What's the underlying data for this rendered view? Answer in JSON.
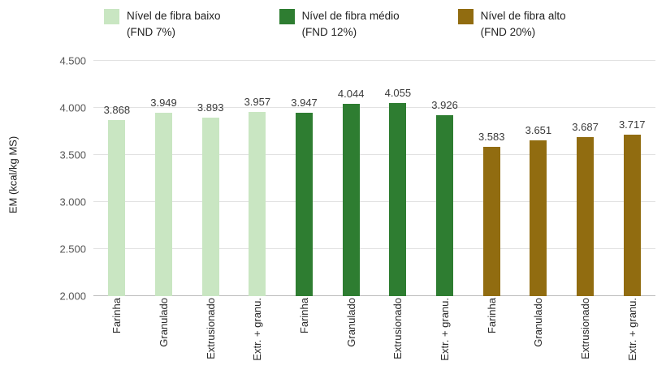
{
  "chart_data": {
    "type": "bar",
    "title": "",
    "xlabel": "",
    "ylabel": "EM (kcal/kg MS)",
    "ylim": [
      2000,
      4500
    ],
    "grid": true,
    "legend_position": "top",
    "yticks": [
      {
        "value": 4500,
        "label": "4.500"
      },
      {
        "value": 4000,
        "label": "4.000"
      },
      {
        "value": 3500,
        "label": "3.500"
      },
      {
        "value": 3000,
        "label": "3.000"
      },
      {
        "value": 2500,
        "label": "2.500"
      },
      {
        "value": 2000,
        "label": "2.000"
      }
    ],
    "categories": [
      "Farinha",
      "Granulado",
      "Extrusionado",
      "Extr. + granu."
    ],
    "series": [
      {
        "name": "Nível de fibra baixo (FND 7%)",
        "color": "#c9e6c2",
        "values": [
          3868,
          3949,
          3893,
          3957
        ],
        "value_labels": [
          "3.868",
          "3.949",
          "3.893",
          "3.957"
        ]
      },
      {
        "name": "Nível de fibra médio (FND 12%)",
        "color": "#2e7d31",
        "values": [
          3947,
          4044,
          4055,
          3926
        ],
        "value_labels": [
          "3.947",
          "4.044",
          "4.055",
          "3.926"
        ]
      },
      {
        "name": "Nível de fibra alto (FND 20%)",
        "color": "#916c10",
        "values": [
          3583,
          3651,
          3687,
          3717
        ],
        "value_labels": [
          "3.583",
          "3.651",
          "3.687",
          "3.717"
        ]
      }
    ],
    "legend": [
      {
        "line1": "Nível de fibra baixo",
        "line2": "(FND 7%)",
        "color": "#c9e6c2"
      },
      {
        "line1": "Nível de fibra médio",
        "line2": "(FND 12%)",
        "color": "#2e7d31"
      },
      {
        "line1": "Nível de fibra alto",
        "line2": "(FND 20%)",
        "color": "#916c10"
      }
    ]
  }
}
